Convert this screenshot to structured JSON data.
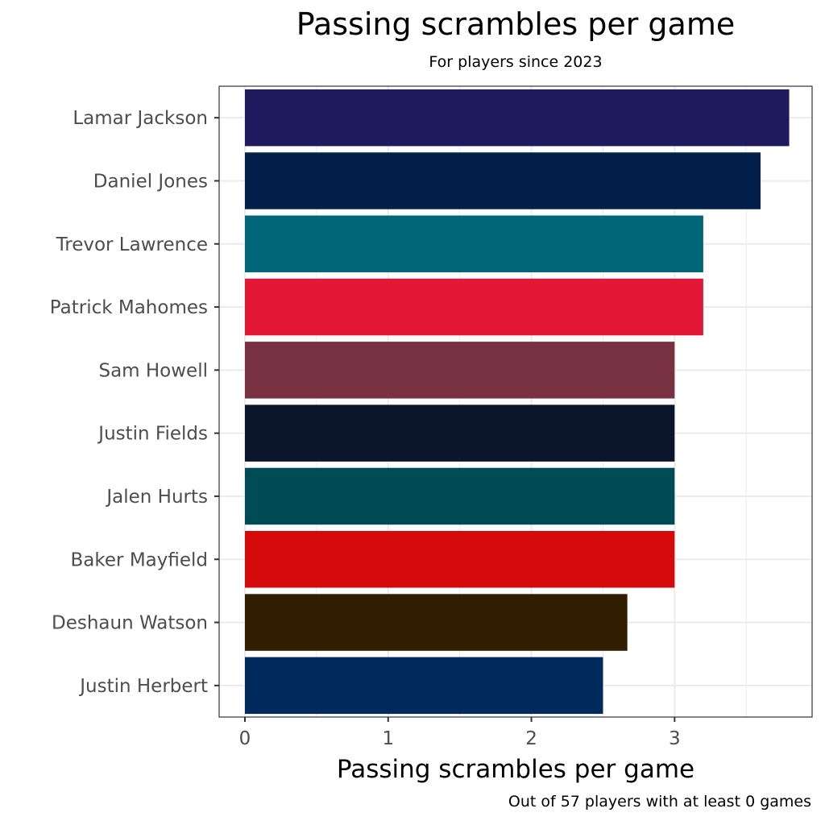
{
  "chart_data": {
    "type": "bar",
    "orientation": "horizontal",
    "title": "Passing scrambles per game",
    "subtitle": "For players since 2023",
    "xlabel": "Passing scrambles per game",
    "ylabel": "",
    "caption": "Out of 57 players with at least 0 games",
    "xlim": [
      -0.18,
      3.96
    ],
    "xticks": [
      0,
      1,
      2,
      3
    ],
    "grid": true,
    "legend": "none",
    "categories": [
      "Lamar Jackson",
      "Daniel Jones",
      "Trevor Lawrence",
      "Patrick Mahomes",
      "Sam Howell",
      "Justin Fields",
      "Jalen Hurts",
      "Baker Mayfield",
      "Deshaun Watson",
      "Justin Herbert"
    ],
    "values": [
      3.8,
      3.6,
      3.2,
      3.2,
      3.0,
      3.0,
      3.0,
      3.0,
      2.67,
      2.5
    ],
    "colors": [
      "#1d1a5e",
      "#03204b",
      "#006778",
      "#e31837",
      "#773141",
      "#0b162a",
      "#004c54",
      "#d50a0a",
      "#311d00",
      "#002a5c"
    ]
  }
}
